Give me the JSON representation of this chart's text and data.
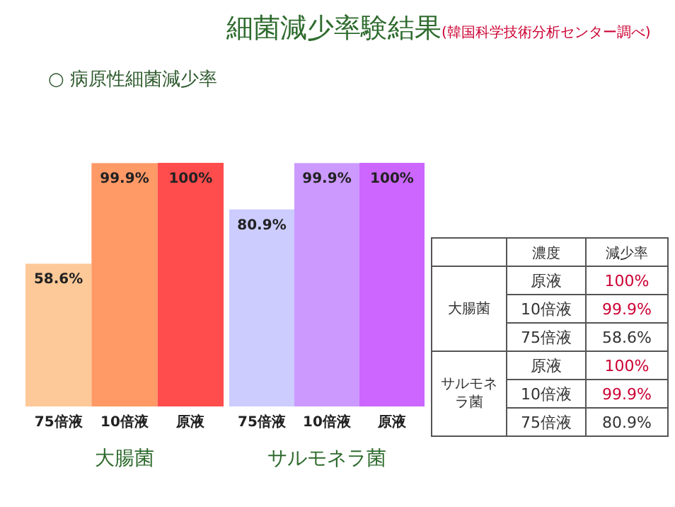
{
  "chart_data": [
    {
      "type": "other",
      "title": "細菌減少率験結果",
      "subtitle": "(韓国科学技術分析センター調べ)",
      "annotations": [
        "○ 病原性細菌減少率"
      ]
    },
    {
      "type": "bar",
      "categories": [
        "75倍液",
        "10倍液",
        "原液"
      ],
      "values": [
        58.6,
        99.9,
        100
      ],
      "colors": [
        "#fdc998",
        "#ff9966",
        "#ff4c4c"
      ],
      "value_labels": [
        "58.6%",
        "99.9%",
        "100%"
      ],
      "xlabel": "大腸菌"
    },
    {
      "type": "bar",
      "categories": [
        "75倍液",
        "10倍液",
        "原液"
      ],
      "values": [
        80.9,
        99.9,
        100
      ],
      "colors": [
        "#ccccff",
        "#cc99ff",
        "#cc66ff"
      ],
      "value_labels": [
        "80.9%",
        "99.9%",
        "100%"
      ],
      "xlabel": "サルモネラ菌"
    },
    {
      "type": "other",
      "categories": [
        null,
        "濃度",
        "減少率"
      ],
      "y_categories": [
        "大腸菌",
        null,
        null,
        "サルモネラ菌",
        null,
        null
      ],
      "cell_labels": [
        [
          "原液",
          "100%"
        ],
        [
          "10倍液",
          "99.9%"
        ],
        [
          "75倍液",
          "58.6%"
        ],
        [
          "原液",
          "100%"
        ],
        [
          "10倍液",
          "99.9%"
        ],
        [
          "75倍液",
          "80.9%"
        ]
      ],
      "colors": [
        null,
        "#cc0033",
        null,
        "#cc0033",
        null,
        "#333333",
        null,
        "#cc0033",
        null,
        "#cc0033",
        null,
        "#333333"
      ]
    }
  ]
}
